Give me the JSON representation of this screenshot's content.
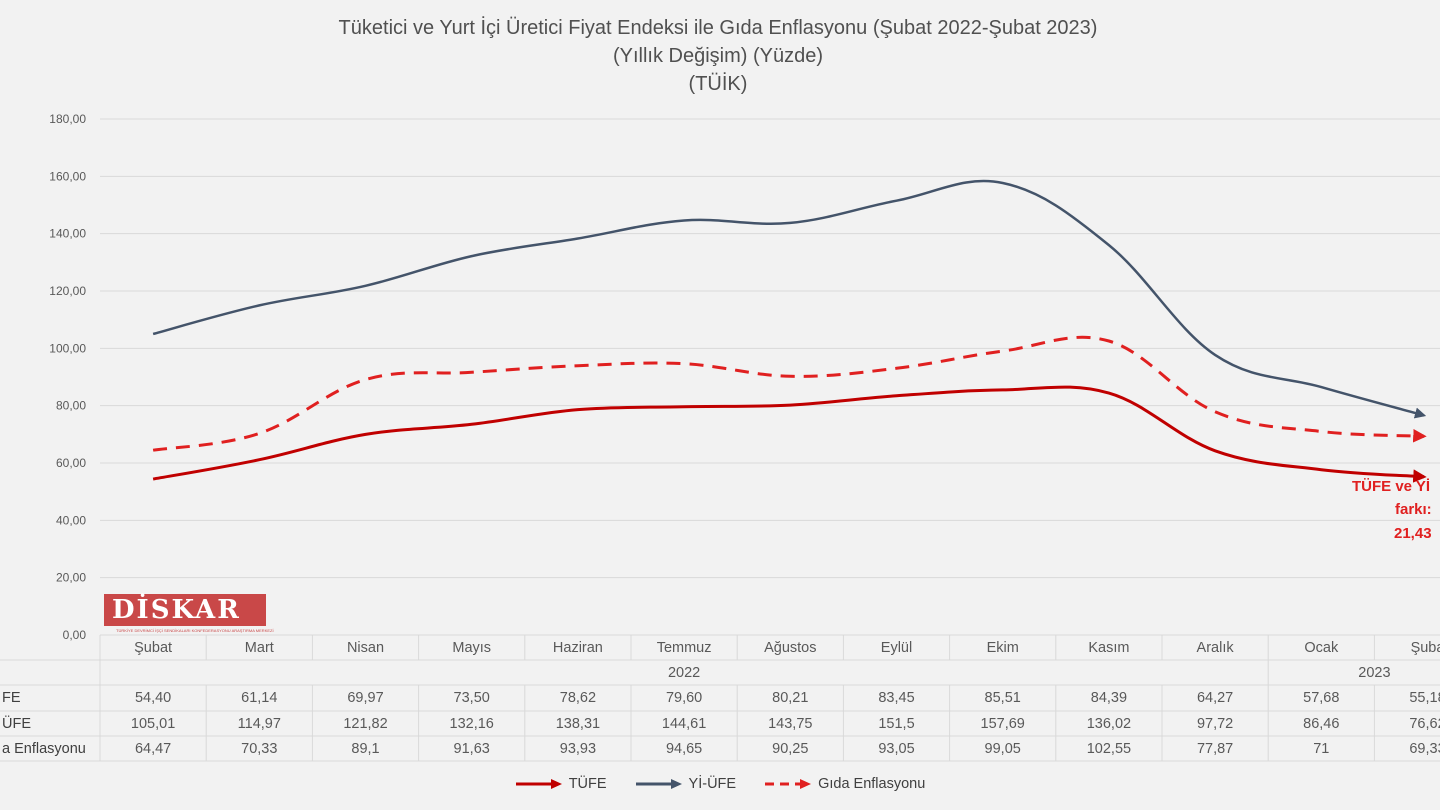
{
  "chart_data": {
    "type": "line",
    "title": "Tüketici ve Yurt İçi Üretici Fiyat Endeksi ile Gıda Enflasyonu (Şubat 2022-Şubat 2023)",
    "subtitle": "(Yıllık Değişim) (Yüzde)",
    "source": "(TÜİK)",
    "categories": [
      "Şubat",
      "Mart",
      "Nisan",
      "Mayıs",
      "Haziran",
      "Temmuz",
      "Ağustos",
      "Eylül",
      "Ekim",
      "Kasım",
      "Aralık",
      "Ocak",
      "Şuba"
    ],
    "year_labels": [
      "2022",
      "2023"
    ],
    "ylim": [
      0,
      180
    ],
    "yticks": [
      "0,00",
      "20,00",
      "40,00",
      "60,00",
      "80,00",
      "100,00",
      "120,00",
      "140,00",
      "160,00",
      "180,00"
    ],
    "grid": true,
    "legend_position": "bottom",
    "series": [
      {
        "name": "TÜFE",
        "row_label": "FE",
        "color": "#c00000",
        "style": "solid",
        "values": [
          54.4,
          61.14,
          69.97,
          73.5,
          78.62,
          79.6,
          80.21,
          83.45,
          85.51,
          84.39,
          64.27,
          57.68,
          55.18
        ],
        "labels": [
          "54,40",
          "61,14",
          "69,97",
          "73,50",
          "78,62",
          "79,60",
          "80,21",
          "83,45",
          "85,51",
          "84,39",
          "64,27",
          "57,68",
          "55,18"
        ]
      },
      {
        "name": "Yİ-ÜFE",
        "row_label": "ÜFE",
        "color": "#44546a",
        "style": "solid",
        "values": [
          105.01,
          114.97,
          121.82,
          132.16,
          138.31,
          144.61,
          143.75,
          151.5,
          157.69,
          136.02,
          97.72,
          86.46,
          76.62
        ],
        "labels": [
          "105,01",
          "114,97",
          "121,82",
          "132,16",
          "138,31",
          "144,61",
          "143,75",
          "151,5",
          "157,69",
          "136,02",
          "97,72",
          "86,46",
          "76,62"
        ]
      },
      {
        "name": "Gıda Enflasyonu",
        "row_label": "a Enflasyonu",
        "color": "#e02020",
        "style": "dashed",
        "values": [
          64.47,
          70.33,
          89.1,
          91.63,
          93.93,
          94.65,
          90.25,
          93.05,
          99.05,
          102.55,
          77.87,
          71,
          69.33
        ],
        "labels": [
          "64,47",
          "70,33",
          "89,1",
          "91,63",
          "93,93",
          "94,65",
          "90,25",
          "93,05",
          "99,05",
          "102,55",
          "77,87",
          "71",
          "69,33"
        ]
      }
    ],
    "annotation": [
      "TÜFE ve Yİ",
      "farkı:",
      "21,43"
    ]
  },
  "logo": {
    "text": "DİSKAR",
    "subtext": "TÜRKİYE DEVRİMCİ İŞÇİ SENDİKALARI KONFEDERASYONU ARAŞTIRMA MERKEZİ"
  }
}
